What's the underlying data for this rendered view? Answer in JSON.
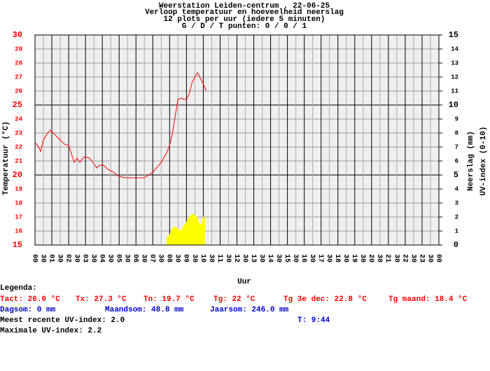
{
  "chart_data": {
    "type": "line",
    "title": "Weerstation Leiden-centrum , 22-06-25",
    "subtitle": [
      "Verloop temperatuur en hoeveelheid neerslag",
      "12 plots per uur (iedere 5 minuten)",
      "G / D / T punten: 0 / 0 / 1"
    ],
    "xlabel": "Uur",
    "ylabel": "Temperatuur (°C)",
    "y2label": [
      "Neerslag (mm)",
      "UV-index (0-10)"
    ],
    "xlim": [
      0,
      24
    ],
    "xticks": [
      {
        "value": 0,
        "label": "00"
      },
      {
        "value": 0.5,
        "label": "30"
      },
      {
        "value": 1,
        "label": "01"
      },
      {
        "value": 1.5,
        "label": "30"
      },
      {
        "value": 2,
        "label": "02"
      },
      {
        "value": 2.5,
        "label": "30"
      },
      {
        "value": 3,
        "label": "03"
      },
      {
        "value": 3.5,
        "label": "30"
      },
      {
        "value": 4,
        "label": "04"
      },
      {
        "value": 4.5,
        "label": "30"
      },
      {
        "value": 5,
        "label": "05"
      },
      {
        "value": 5.5,
        "label": "30"
      },
      {
        "value": 6,
        "label": "06"
      },
      {
        "value": 6.5,
        "label": "30"
      },
      {
        "value": 7,
        "label": "07"
      },
      {
        "value": 7.5,
        "label": "30"
      },
      {
        "value": 8,
        "label": "08"
      },
      {
        "value": 8.5,
        "label": "30"
      },
      {
        "value": 9,
        "label": "09"
      },
      {
        "value": 9.5,
        "label": "30"
      },
      {
        "value": 10,
        "label": "10"
      },
      {
        "value": 10.5,
        "label": "30"
      },
      {
        "value": 11,
        "label": "11"
      },
      {
        "value": 11.5,
        "label": "30"
      },
      {
        "value": 12,
        "label": "12"
      },
      {
        "value": 12.5,
        "label": "30"
      },
      {
        "value": 13,
        "label": "13"
      },
      {
        "value": 13.5,
        "label": "30"
      },
      {
        "value": 14,
        "label": "14"
      },
      {
        "value": 14.5,
        "label": "30"
      },
      {
        "value": 15,
        "label": "15"
      },
      {
        "value": 15.5,
        "label": "30"
      },
      {
        "value": 16,
        "label": "16"
      },
      {
        "value": 16.5,
        "label": "30"
      },
      {
        "value": 17,
        "label": "17"
      },
      {
        "value": 17.5,
        "label": "30"
      },
      {
        "value": 18,
        "label": "18"
      },
      {
        "value": 18.5,
        "label": "30"
      },
      {
        "value": 19,
        "label": "19"
      },
      {
        "value": 19.5,
        "label": "30"
      },
      {
        "value": 20,
        "label": "20"
      },
      {
        "value": 20.5,
        "label": "30"
      },
      {
        "value": 21,
        "label": "21"
      },
      {
        "value": 21.5,
        "label": "30"
      },
      {
        "value": 22,
        "label": "22"
      },
      {
        "value": 22.5,
        "label": "30"
      },
      {
        "value": 23,
        "label": "23"
      },
      {
        "value": 23.5,
        "label": "30"
      },
      {
        "value": 24,
        "label": "00"
      }
    ],
    "ylim": [
      15,
      30
    ],
    "yticks": [
      15,
      16,
      17,
      18,
      19,
      20,
      21,
      22,
      23,
      24,
      25,
      26,
      27,
      28,
      29,
      30
    ],
    "ytick_color": "#ff0000",
    "y2lim": [
      0,
      15
    ],
    "y2ticks": [
      0,
      1,
      2,
      3,
      4,
      5,
      6,
      7,
      8,
      9,
      10,
      11,
      12,
      13,
      14,
      15
    ],
    "grid": true,
    "series": [
      {
        "color": "#ff0000",
        "x": [
          0,
          0.17,
          0.33,
          0.5,
          0.75,
          0.92,
          1.17,
          1.5,
          1.75,
          2,
          2.17,
          2.33,
          2.5,
          2.67,
          2.83,
          3,
          3.25,
          3.5,
          3.67,
          3.83,
          4.08,
          4.33,
          4.67,
          5,
          5.33,
          5.67,
          6,
          6.5,
          7,
          7.5,
          7.83,
          8,
          8.17,
          8.33,
          8.5,
          8.67,
          8.83,
          9,
          9.17,
          9.33,
          9.5,
          9.67,
          9.83,
          10,
          10.17
        ],
        "values": [
          22.3,
          22.1,
          21.7,
          22.5,
          23.0,
          23.2,
          22.9,
          22.5,
          22.2,
          22.1,
          21.5,
          20.9,
          21.2,
          20.9,
          21.2,
          21.3,
          21.2,
          20.8,
          20.5,
          20.7,
          20.7,
          20.4,
          20.2,
          19.9,
          19.8,
          19.8,
          19.8,
          19.8,
          20.2,
          20.9,
          21.6,
          22.1,
          23.0,
          24.2,
          25.4,
          25.5,
          25.4,
          25.4,
          25.8,
          26.6,
          27.0,
          27.3,
          26.9,
          26.5,
          26.0
        ]
      },
      {
        "color": "#ffff00",
        "axis": "y2",
        "type": "area",
        "x": [
          7.83,
          8,
          8.17,
          8.33,
          8.5,
          8.67,
          8.83,
          9,
          9.17,
          9.33,
          9.5,
          9.67,
          9.83,
          10,
          10.08
        ],
        "values": [
          0.5,
          0.7,
          1.2,
          1.3,
          1.1,
          1.0,
          1.3,
          1.6,
          2.0,
          2.2,
          2.1,
          1.9,
          1.3,
          2.0,
          1.9
        ]
      }
    ]
  },
  "legend": {
    "heading": "Legenda:",
    "rows": [
      {
        "color": "#ff0000",
        "items": [
          "Tact: 26.0 °C",
          "Tx: 27.3 °C",
          "Tn: 19.7 °C",
          "Tg: 22 °C",
          "Tg 3e dec: 22.8 °C",
          "Tg maand: 18.4 °C"
        ]
      },
      {
        "color": "#0000cc",
        "items": [
          "Dagsom: 0 mm",
          "Maandsom: 48.8 mm",
          "Jaarsom: 246.0 mm"
        ]
      },
      {
        "color": "#000000",
        "items": [
          "Meest recente UV-index: 2.0"
        ]
      },
      {
        "color": "#000000",
        "items": [
          "Maximale UV-index: 2.2"
        ]
      }
    ],
    "time": {
      "color": "#0000cc",
      "text": "T: 9:44"
    }
  }
}
